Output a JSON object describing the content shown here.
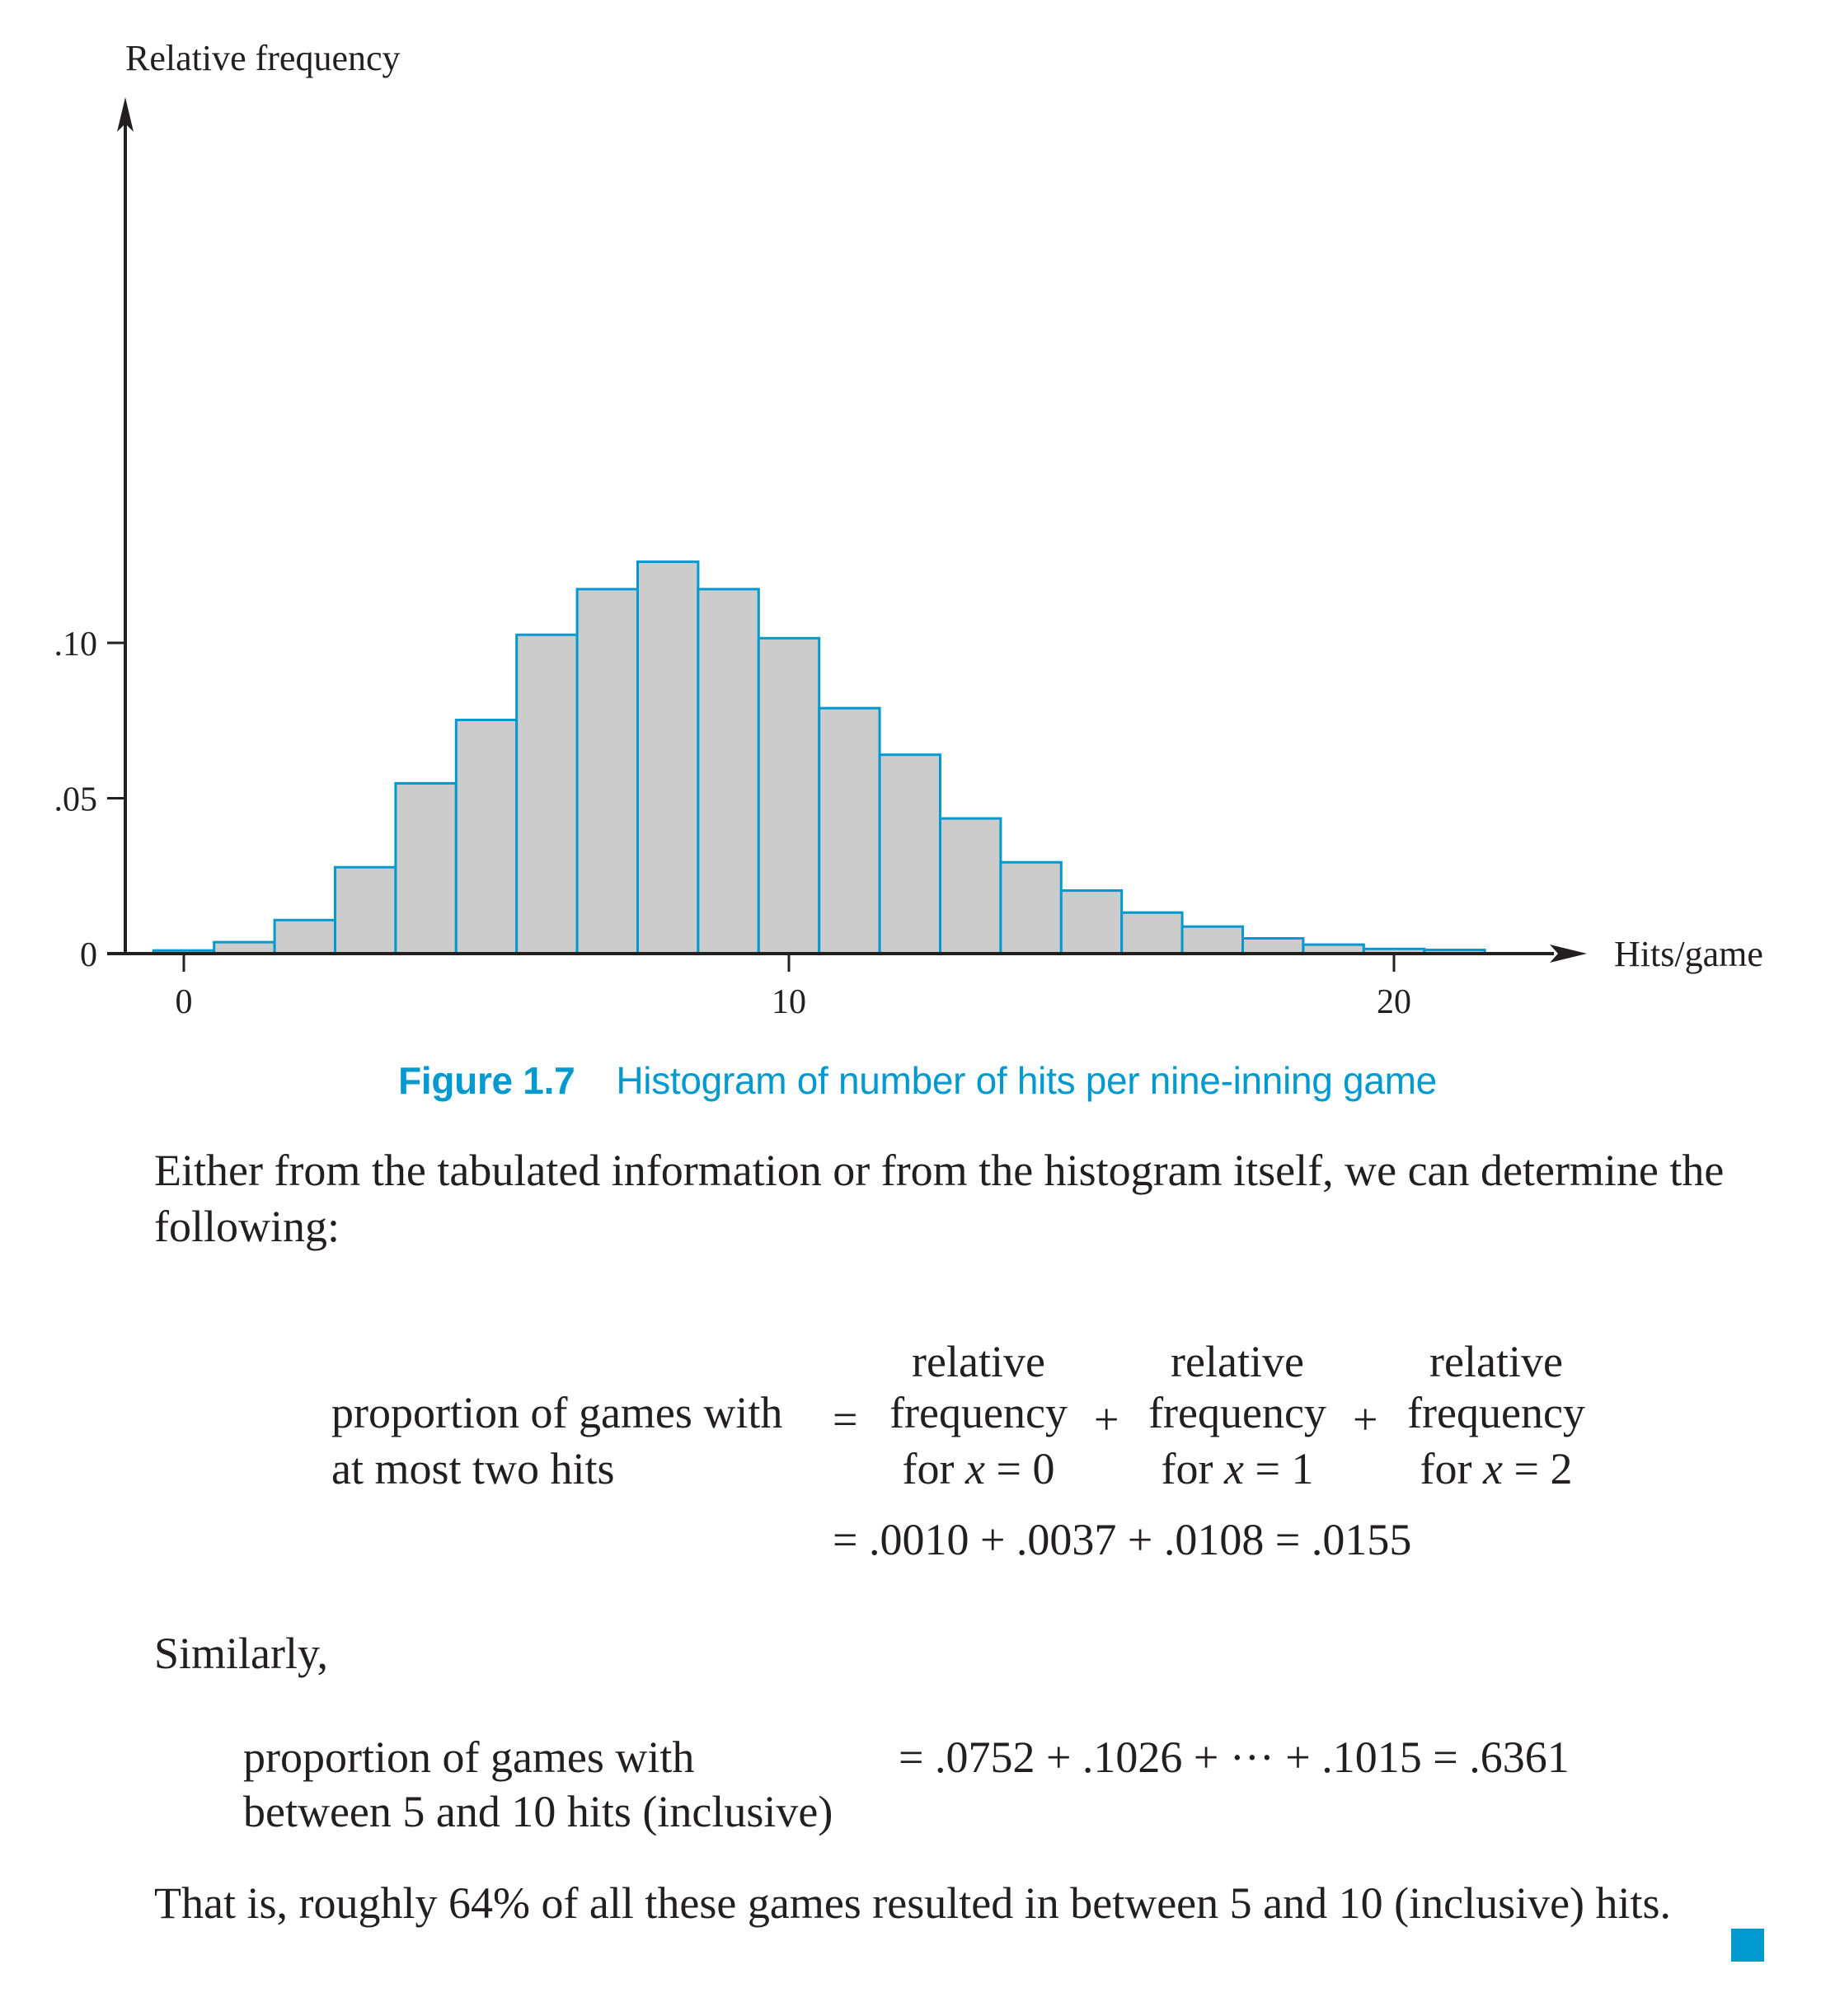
{
  "chart_data": {
    "type": "bar",
    "title": "",
    "xlabel": "Hits/game",
    "ylabel": "Relative frequency",
    "x": [
      0,
      1,
      2,
      3,
      4,
      5,
      6,
      7,
      8,
      9,
      10,
      11,
      12,
      13,
      14,
      15,
      16,
      17,
      18,
      19,
      20,
      21
    ],
    "values": [
      0.001,
      0.0037,
      0.0108,
      0.0278,
      0.0548,
      0.0752,
      0.1026,
      0.1173,
      0.1261,
      0.1173,
      0.1015,
      0.079,
      0.064,
      0.0435,
      0.0294,
      0.0203,
      0.0132,
      0.0087,
      0.0049,
      0.0029,
      0.0015,
      0.0012
    ],
    "xticks": [
      "0",
      "10",
      "20"
    ],
    "yticks": [
      ".10",
      ".05",
      "0"
    ],
    "xlim": [
      -0.5,
      21.5
    ],
    "ylim": [
      0,
      0.13
    ],
    "bar_fill": "#cccccc",
    "bar_stroke": "#0099d0",
    "grid": false
  },
  "caption": {
    "label": "Figure 1.7",
    "text": "Histogram of number of hits per nine-inning game"
  },
  "intro": "Either from the tabulated information or from the histogram itself, we can determine the following:",
  "eq1": {
    "lhs_line1": "proportion of games with",
    "lhs_line2": "at most two hits",
    "eq_sign": "=",
    "plus": "+",
    "term_line1": "relative",
    "term_line2": "frequency",
    "term1_for": "for ",
    "term_var": "x",
    "term1_val": " = 0",
    "term2_val": " = 1",
    "term3_val": " = 2",
    "result": "= .0010 + .0037 + .0108 = .0155"
  },
  "similarly": "Similarly,",
  "eq2": {
    "lhs_line1": "proportion of games with",
    "lhs_line2": "between 5 and 10 hits (inclusive)",
    "rhs": "= .0752 + .1026 + ··· + .1015 = .6361"
  },
  "conclusion": "That is, roughly 64% of all these games resulted in between 5 and 10 (inclusive) hits."
}
